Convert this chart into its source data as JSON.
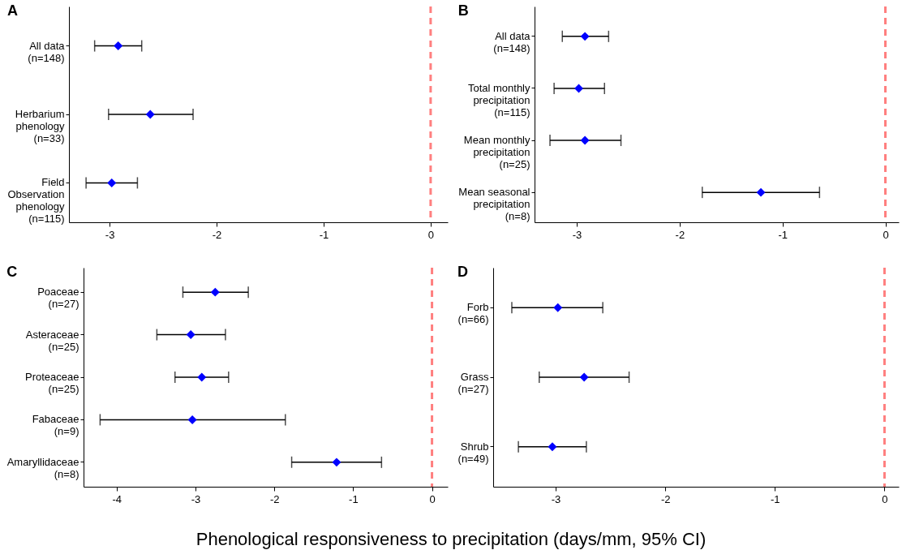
{
  "chart_data": [
    {
      "type": "scatter",
      "orientation": "horizontal",
      "title": "A",
      "categories": [
        "All data\n(n=148)",
        "Herbarium\nphenology\n(n=33)",
        "Field\nObservation\nphenology\n(n=115)"
      ],
      "marker": "diamond",
      "grid": false,
      "xlim": [
        -3.38,
        0.16
      ],
      "xticks": [
        -3,
        -2,
        -1,
        0
      ],
      "series": [
        {
          "color": "#0000ff",
          "values": [
            -2.92,
            -2.62,
            -2.98
          ],
          "errors": [
            [
              -3.14,
              -2.7
            ],
            [
              -3.01,
              -2.22
            ],
            [
              -3.22,
              -2.74
            ]
          ]
        }
      ],
      "ref_lines": [
        {
          "axis": "x",
          "value": 0,
          "color": "#ff7f7f",
          "line_style": "dashed"
        }
      ]
    },
    {
      "type": "scatter",
      "orientation": "horizontal",
      "title": "B",
      "categories": [
        "All data\n(n=148)",
        "Total monthly\nprecipitation\n(n=115)",
        "Mean monthly\nprecipitation\n(n=25)",
        "Mean seasonal\nprecipitation\n(n=8)"
      ],
      "marker": "diamond",
      "grid": false,
      "xlim": [
        -3.41,
        0.13
      ],
      "xticks": [
        -3,
        -2,
        -1,
        0
      ],
      "series": [
        {
          "color": "#0000ff",
          "values": [
            -2.92,
            -2.98,
            -2.92,
            -1.21
          ],
          "errors": [
            [
              -3.14,
              -2.69
            ],
            [
              -3.22,
              -2.73
            ],
            [
              -3.26,
              -2.57
            ],
            [
              -1.78,
              -0.64
            ]
          ]
        }
      ],
      "ref_lines": [
        {
          "axis": "x",
          "value": 0,
          "color": "#ff7f7f",
          "line_style": "dashed"
        }
      ]
    },
    {
      "type": "scatter",
      "orientation": "horizontal",
      "title": "C",
      "xlabel": "Phenological responsiveness to precipitation (days/mm, 95% CI)",
      "categories": [
        "Poaceae\n(n=27)",
        "Asteraceae\n(n=25)",
        "Proteaceae\n(n=25)",
        "Fabaceae\n(n=9)",
        "Amaryllidaceae\n(n=8)"
      ],
      "marker": "diamond",
      "grid": false,
      "xlim": [
        -4.42,
        0.2
      ],
      "xticks": [
        -4,
        -3,
        -2,
        -1,
        0
      ],
      "series": [
        {
          "color": "#0000ff",
          "values": [
            -2.75,
            -3.06,
            -2.92,
            -3.04,
            -1.21
          ],
          "errors": [
            [
              -3.16,
              -2.33
            ],
            [
              -3.49,
              -2.62
            ],
            [
              -3.26,
              -2.58
            ],
            [
              -4.21,
              -1.86
            ],
            [
              -1.78,
              -0.64
            ]
          ]
        }
      ],
      "ref_lines": [
        {
          "axis": "x",
          "value": 0,
          "color": "#ff7f7f",
          "line_style": "dashed"
        }
      ]
    },
    {
      "type": "scatter",
      "orientation": "horizontal",
      "title": "D",
      "categories": [
        "Forb\n(n=66)",
        "Grass\n(n=27)",
        "Shrub\n(n=49)"
      ],
      "marker": "diamond",
      "grid": false,
      "xlim": [
        -3.57,
        0.13
      ],
      "xticks": [
        -3,
        -2,
        -1,
        0
      ],
      "series": [
        {
          "color": "#0000ff",
          "values": [
            -2.98,
            -2.74,
            -3.03
          ],
          "errors": [
            [
              -3.4,
              -2.57
            ],
            [
              -3.15,
              -2.33
            ],
            [
              -3.34,
              -2.72
            ]
          ]
        }
      ],
      "ref_lines": [
        {
          "axis": "x",
          "value": 0,
          "color": "#ff7f7f",
          "line_style": "dashed"
        }
      ]
    }
  ]
}
